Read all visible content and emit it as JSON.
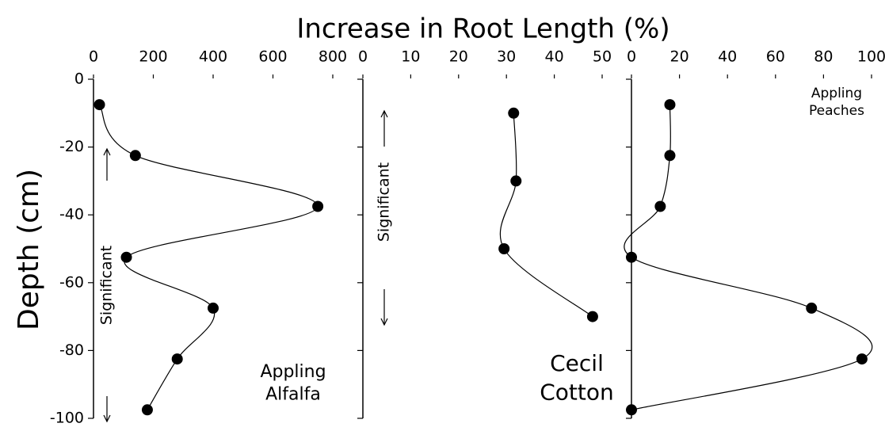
{
  "title": "Increase in Root Length (%)",
  "ylabel": "Depth (cm)",
  "chart_data": [
    {
      "type": "scatter",
      "label": [
        "Appling",
        "Alfalfa"
      ],
      "annotation": "Significant",
      "x": [
        20,
        140,
        750,
        110,
        400,
        280,
        180
      ],
      "y": [
        -7.5,
        -22.5,
        -37.5,
        -52.5,
        -67.5,
        -82.5,
        -97.5
      ],
      "xlim": [
        0,
        800
      ],
      "xticks": [
        0,
        200,
        400,
        600,
        800
      ],
      "ylim": [
        -100,
        0
      ],
      "yticks": [
        0,
        -20,
        -40,
        -60,
        -80,
        -100
      ]
    },
    {
      "type": "scatter",
      "label": [
        "Cecil",
        "Cotton"
      ],
      "annotation": "Significant",
      "x": [
        31.5,
        32,
        29.5,
        48
      ],
      "y": [
        -10,
        -30,
        -50,
        -70
      ],
      "xlim": [
        0,
        50
      ],
      "xticks": [
        0,
        10,
        20,
        30,
        40,
        50
      ],
      "ylim": [
        -100,
        0
      ]
    },
    {
      "type": "scatter",
      "label": [
        "Appling",
        "Peaches"
      ],
      "x": [
        16,
        16,
        12,
        0,
        75,
        96,
        0
      ],
      "y": [
        -7.5,
        -22.5,
        -37.5,
        -52.5,
        -67.5,
        -82.5,
        -97.5
      ],
      "xlim": [
        0,
        100
      ],
      "xticks": [
        0,
        20,
        40,
        60,
        80,
        100
      ],
      "ylim": [
        -100,
        0
      ]
    }
  ]
}
